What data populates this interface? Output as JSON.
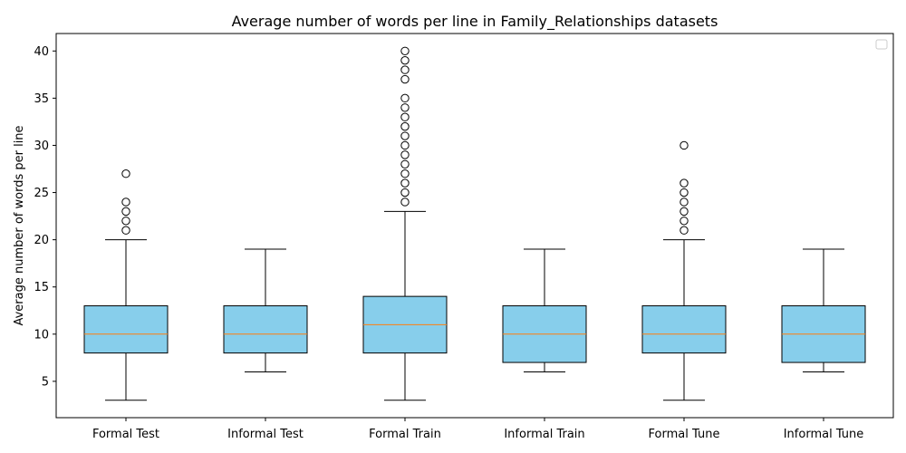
{
  "chart_data": {
    "type": "box",
    "title": "Average number of words per line in Family_Relationships datasets",
    "xlabel": "",
    "ylabel": "Average number of words per line",
    "ylim": [
      1.15,
      41.85
    ],
    "yticks": [
      5,
      10,
      15,
      20,
      25,
      30,
      35,
      40
    ],
    "legend": "top-right",
    "legend_entries": [],
    "grid": false,
    "colors": {
      "box_fill": "#87ceeb",
      "median": "#ff7f0e",
      "edge": "#000000"
    },
    "categories": [
      "Formal Test",
      "Informal Test",
      "Formal Train",
      "Informal Train",
      "Formal Tune",
      "Informal Tune"
    ],
    "boxes": [
      {
        "category": "Formal Test",
        "whisker_low": 3,
        "q1": 8,
        "median": 10,
        "q3": 13,
        "whisker_high": 20,
        "outliers": [
          21,
          22,
          23,
          24,
          27
        ]
      },
      {
        "category": "Informal Test",
        "whisker_low": 6,
        "q1": 8,
        "median": 10,
        "q3": 13,
        "whisker_high": 19,
        "outliers": []
      },
      {
        "category": "Formal Train",
        "whisker_low": 3,
        "q1": 8,
        "median": 11,
        "q3": 14,
        "whisker_high": 23,
        "outliers": [
          24,
          25,
          26,
          27,
          28,
          29,
          30,
          31,
          32,
          33,
          34,
          35,
          37,
          38,
          39,
          40
        ]
      },
      {
        "category": "Informal Train",
        "whisker_low": 6,
        "q1": 7,
        "median": 10,
        "q3": 13,
        "whisker_high": 19,
        "outliers": []
      },
      {
        "category": "Formal Tune",
        "whisker_low": 3,
        "q1": 8,
        "median": 10,
        "q3": 13,
        "whisker_high": 20,
        "outliers": [
          21,
          22,
          23,
          24,
          25,
          26,
          30
        ]
      },
      {
        "category": "Informal Tune",
        "whisker_low": 6,
        "q1": 7,
        "median": 10,
        "q3": 13,
        "whisker_high": 19,
        "outliers": []
      }
    ]
  }
}
